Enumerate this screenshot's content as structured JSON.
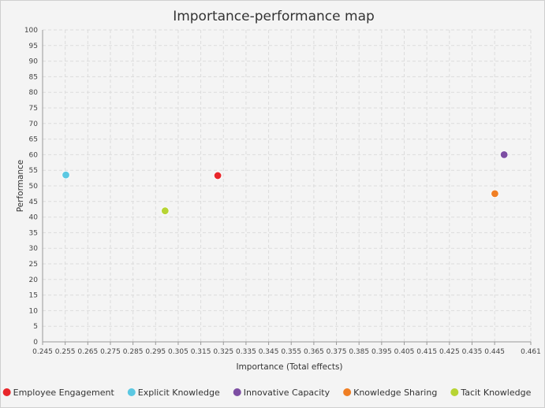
{
  "chart_data": {
    "type": "scatter",
    "title": "Importance-performance map",
    "xlabel": "Importance (Total effects)",
    "ylabel": "Performance",
    "xlim": [
      0.245,
      0.461
    ],
    "ylim": [
      0,
      100
    ],
    "x_ticks": [
      0.245,
      0.255,
      0.265,
      0.275,
      0.285,
      0.295,
      0.305,
      0.315,
      0.325,
      0.335,
      0.345,
      0.355,
      0.365,
      0.375,
      0.385,
      0.395,
      0.405,
      0.415,
      0.425,
      0.435,
      0.445,
      0.461
    ],
    "y_ticks": [
      0,
      5,
      10,
      15,
      20,
      25,
      30,
      35,
      40,
      45,
      50,
      55,
      60,
      65,
      70,
      75,
      80,
      85,
      90,
      95,
      100
    ],
    "grid": true,
    "legend_position": "bottom",
    "series": [
      {
        "name": "Employee Engagement",
        "color": "#e8262a",
        "x": 0.3225,
        "y": 53.3
      },
      {
        "name": "Explicit Knowledge",
        "color": "#5bc8e2",
        "x": 0.2553,
        "y": 53.5
      },
      {
        "name": "Innovative Capacity",
        "color": "#7d4ea3",
        "x": 0.4492,
        "y": 60.0
      },
      {
        "name": "Knowledge Sharing",
        "color": "#f07f24",
        "x": 0.4451,
        "y": 47.5
      },
      {
        "name": "Tacit Knowledge",
        "color": "#b7d433",
        "x": 0.2992,
        "y": 42.0
      }
    ]
  }
}
